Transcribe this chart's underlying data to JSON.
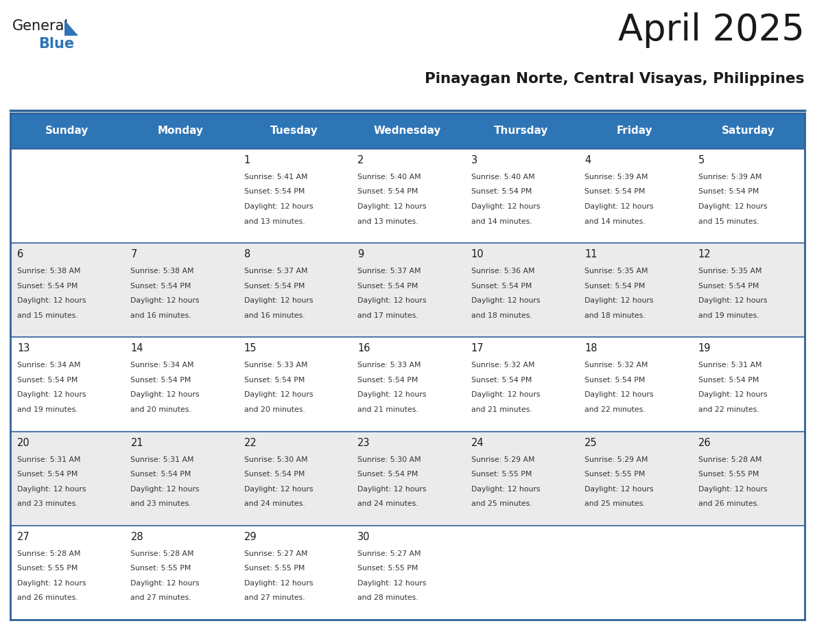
{
  "title": "April 2025",
  "subtitle": "Pinayagan Norte, Central Visayas, Philippines",
  "header_bg_color": "#2E75B6",
  "header_text_color": "#FFFFFF",
  "row_bg_colors": [
    "#FFFFFF",
    "#EBEBEB",
    "#FFFFFF",
    "#EBEBEB",
    "#FFFFFF"
  ],
  "title_color": "#1A1A1A",
  "subtitle_color": "#1A1A1A",
  "day_headers": [
    "Sunday",
    "Monday",
    "Tuesday",
    "Wednesday",
    "Thursday",
    "Friday",
    "Saturday"
  ],
  "days_data": [
    {
      "day": 1,
      "col": 2,
      "row": 0,
      "sunrise": "5:41 AM",
      "sunset": "5:54 PM",
      "daylight_hours": 12,
      "daylight_minutes": 13
    },
    {
      "day": 2,
      "col": 3,
      "row": 0,
      "sunrise": "5:40 AM",
      "sunset": "5:54 PM",
      "daylight_hours": 12,
      "daylight_minutes": 13
    },
    {
      "day": 3,
      "col": 4,
      "row": 0,
      "sunrise": "5:40 AM",
      "sunset": "5:54 PM",
      "daylight_hours": 12,
      "daylight_minutes": 14
    },
    {
      "day": 4,
      "col": 5,
      "row": 0,
      "sunrise": "5:39 AM",
      "sunset": "5:54 PM",
      "daylight_hours": 12,
      "daylight_minutes": 14
    },
    {
      "day": 5,
      "col": 6,
      "row": 0,
      "sunrise": "5:39 AM",
      "sunset": "5:54 PM",
      "daylight_hours": 12,
      "daylight_minutes": 15
    },
    {
      "day": 6,
      "col": 0,
      "row": 1,
      "sunrise": "5:38 AM",
      "sunset": "5:54 PM",
      "daylight_hours": 12,
      "daylight_minutes": 15
    },
    {
      "day": 7,
      "col": 1,
      "row": 1,
      "sunrise": "5:38 AM",
      "sunset": "5:54 PM",
      "daylight_hours": 12,
      "daylight_minutes": 16
    },
    {
      "day": 8,
      "col": 2,
      "row": 1,
      "sunrise": "5:37 AM",
      "sunset": "5:54 PM",
      "daylight_hours": 12,
      "daylight_minutes": 16
    },
    {
      "day": 9,
      "col": 3,
      "row": 1,
      "sunrise": "5:37 AM",
      "sunset": "5:54 PM",
      "daylight_hours": 12,
      "daylight_minutes": 17
    },
    {
      "day": 10,
      "col": 4,
      "row": 1,
      "sunrise": "5:36 AM",
      "sunset": "5:54 PM",
      "daylight_hours": 12,
      "daylight_minutes": 18
    },
    {
      "day": 11,
      "col": 5,
      "row": 1,
      "sunrise": "5:35 AM",
      "sunset": "5:54 PM",
      "daylight_hours": 12,
      "daylight_minutes": 18
    },
    {
      "day": 12,
      "col": 6,
      "row": 1,
      "sunrise": "5:35 AM",
      "sunset": "5:54 PM",
      "daylight_hours": 12,
      "daylight_minutes": 19
    },
    {
      "day": 13,
      "col": 0,
      "row": 2,
      "sunrise": "5:34 AM",
      "sunset": "5:54 PM",
      "daylight_hours": 12,
      "daylight_minutes": 19
    },
    {
      "day": 14,
      "col": 1,
      "row": 2,
      "sunrise": "5:34 AM",
      "sunset": "5:54 PM",
      "daylight_hours": 12,
      "daylight_minutes": 20
    },
    {
      "day": 15,
      "col": 2,
      "row": 2,
      "sunrise": "5:33 AM",
      "sunset": "5:54 PM",
      "daylight_hours": 12,
      "daylight_minutes": 20
    },
    {
      "day": 16,
      "col": 3,
      "row": 2,
      "sunrise": "5:33 AM",
      "sunset": "5:54 PM",
      "daylight_hours": 12,
      "daylight_minutes": 21
    },
    {
      "day": 17,
      "col": 4,
      "row": 2,
      "sunrise": "5:32 AM",
      "sunset": "5:54 PM",
      "daylight_hours": 12,
      "daylight_minutes": 21
    },
    {
      "day": 18,
      "col": 5,
      "row": 2,
      "sunrise": "5:32 AM",
      "sunset": "5:54 PM",
      "daylight_hours": 12,
      "daylight_minutes": 22
    },
    {
      "day": 19,
      "col": 6,
      "row": 2,
      "sunrise": "5:31 AM",
      "sunset": "5:54 PM",
      "daylight_hours": 12,
      "daylight_minutes": 22
    },
    {
      "day": 20,
      "col": 0,
      "row": 3,
      "sunrise": "5:31 AM",
      "sunset": "5:54 PM",
      "daylight_hours": 12,
      "daylight_minutes": 23
    },
    {
      "day": 21,
      "col": 1,
      "row": 3,
      "sunrise": "5:31 AM",
      "sunset": "5:54 PM",
      "daylight_hours": 12,
      "daylight_minutes": 23
    },
    {
      "day": 22,
      "col": 2,
      "row": 3,
      "sunrise": "5:30 AM",
      "sunset": "5:54 PM",
      "daylight_hours": 12,
      "daylight_minutes": 24
    },
    {
      "day": 23,
      "col": 3,
      "row": 3,
      "sunrise": "5:30 AM",
      "sunset": "5:54 PM",
      "daylight_hours": 12,
      "daylight_minutes": 24
    },
    {
      "day": 24,
      "col": 4,
      "row": 3,
      "sunrise": "5:29 AM",
      "sunset": "5:55 PM",
      "daylight_hours": 12,
      "daylight_minutes": 25
    },
    {
      "day": 25,
      "col": 5,
      "row": 3,
      "sunrise": "5:29 AM",
      "sunset": "5:55 PM",
      "daylight_hours": 12,
      "daylight_minutes": 25
    },
    {
      "day": 26,
      "col": 6,
      "row": 3,
      "sunrise": "5:28 AM",
      "sunset": "5:55 PM",
      "daylight_hours": 12,
      "daylight_minutes": 26
    },
    {
      "day": 27,
      "col": 0,
      "row": 4,
      "sunrise": "5:28 AM",
      "sunset": "5:55 PM",
      "daylight_hours": 12,
      "daylight_minutes": 26
    },
    {
      "day": 28,
      "col": 1,
      "row": 4,
      "sunrise": "5:28 AM",
      "sunset": "5:55 PM",
      "daylight_hours": 12,
      "daylight_minutes": 27
    },
    {
      "day": 29,
      "col": 2,
      "row": 4,
      "sunrise": "5:27 AM",
      "sunset": "5:55 PM",
      "daylight_hours": 12,
      "daylight_minutes": 27
    },
    {
      "day": 30,
      "col": 3,
      "row": 4,
      "sunrise": "5:27 AM",
      "sunset": "5:55 PM",
      "daylight_hours": 12,
      "daylight_minutes": 28
    }
  ],
  "n_rows": 5,
  "n_cols": 7,
  "line_color": "#2E6099",
  "text_color": "#1A1A1A",
  "day_number_color": "#1A1A1A",
  "info_text_color": "#333333"
}
